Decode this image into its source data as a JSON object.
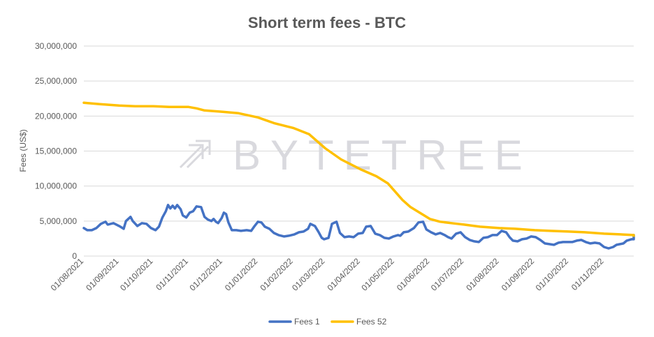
{
  "chart_data": {
    "type": "line",
    "title": "Short term fees - BTC",
    "ylabel": "Fees (US$)",
    "xlabel": "",
    "ylim": [
      0,
      30000000
    ],
    "yticks": [
      0,
      5000000,
      10000000,
      15000000,
      20000000,
      25000000,
      30000000
    ],
    "ytick_labels": [
      "0",
      "5,000,000",
      "10,000,000",
      "15,000,000",
      "20,000,000",
      "25,000,000",
      "30,000,000"
    ],
    "xlim": [
      "2021-08-01",
      "2022-11-25"
    ],
    "xtick_labels": [
      "01/08/2021",
      "01/09/2021",
      "01/10/2021",
      "01/11/2021",
      "01/12/2021",
      "01/01/2022",
      "01/02/2022",
      "01/03/2022",
      "01/04/2022",
      "01/05/2022",
      "01/06/2022",
      "01/07/2022",
      "01/08/2022",
      "01/09/2022",
      "01/10/2022",
      "01/11/2022"
    ],
    "xticks": [
      "2021-08-01",
      "2021-09-01",
      "2021-10-01",
      "2021-11-01",
      "2021-12-01",
      "2022-01-01",
      "2022-02-01",
      "2022-03-01",
      "2022-04-01",
      "2022-05-01",
      "2022-06-01",
      "2022-07-01",
      "2022-08-01",
      "2022-09-01",
      "2022-10-01",
      "2022-11-01"
    ],
    "grid": true,
    "legend_position": "bottom",
    "watermark": "BYTETREE",
    "series": [
      {
        "name": "Fees 1",
        "color": "#4472c4",
        "points": [
          [
            "2021-08-01",
            4000000
          ],
          [
            "2021-08-04",
            3700000
          ],
          [
            "2021-08-08",
            3700000
          ],
          [
            "2021-08-12",
            4000000
          ],
          [
            "2021-08-16",
            4600000
          ],
          [
            "2021-08-20",
            4900000
          ],
          [
            "2021-08-22",
            4500000
          ],
          [
            "2021-08-27",
            4700000
          ],
          [
            "2021-09-01",
            4300000
          ],
          [
            "2021-09-05",
            3900000
          ],
          [
            "2021-09-07",
            5000000
          ],
          [
            "2021-09-11",
            5600000
          ],
          [
            "2021-09-13",
            5000000
          ],
          [
            "2021-09-17",
            4300000
          ],
          [
            "2021-09-21",
            4700000
          ],
          [
            "2021-09-25",
            4600000
          ],
          [
            "2021-09-29",
            4000000
          ],
          [
            "2021-10-03",
            3700000
          ],
          [
            "2021-10-06",
            4200000
          ],
          [
            "2021-10-09",
            5500000
          ],
          [
            "2021-10-12",
            6400000
          ],
          [
            "2021-10-14",
            7300000
          ],
          [
            "2021-10-16",
            6800000
          ],
          [
            "2021-10-18",
            7200000
          ],
          [
            "2021-10-20",
            6800000
          ],
          [
            "2021-10-22",
            7300000
          ],
          [
            "2021-10-25",
            6700000
          ],
          [
            "2021-10-27",
            5800000
          ],
          [
            "2021-10-30",
            5500000
          ],
          [
            "2021-11-02",
            6200000
          ],
          [
            "2021-11-05",
            6400000
          ],
          [
            "2021-11-08",
            7100000
          ],
          [
            "2021-11-12",
            7000000
          ],
          [
            "2021-11-15",
            5600000
          ],
          [
            "2021-11-18",
            5200000
          ],
          [
            "2021-11-21",
            5000000
          ],
          [
            "2021-11-23",
            5300000
          ],
          [
            "2021-11-25",
            4900000
          ],
          [
            "2021-11-27",
            4700000
          ],
          [
            "2021-11-30",
            5400000
          ],
          [
            "2021-12-02",
            6200000
          ],
          [
            "2021-12-04",
            6000000
          ],
          [
            "2021-12-06",
            4800000
          ],
          [
            "2021-12-09",
            3700000
          ],
          [
            "2021-12-13",
            3700000
          ],
          [
            "2021-12-17",
            3600000
          ],
          [
            "2021-12-22",
            3700000
          ],
          [
            "2021-12-26",
            3600000
          ],
          [
            "2021-12-29",
            4300000
          ],
          [
            "2022-01-01",
            4900000
          ],
          [
            "2022-01-04",
            4800000
          ],
          [
            "2022-01-07",
            4200000
          ],
          [
            "2022-01-11",
            3900000
          ],
          [
            "2022-01-15",
            3300000
          ],
          [
            "2022-01-19",
            3000000
          ],
          [
            "2022-01-24",
            2800000
          ],
          [
            "2022-01-28",
            2900000
          ],
          [
            "2022-02-02",
            3100000
          ],
          [
            "2022-02-06",
            3400000
          ],
          [
            "2022-02-10",
            3500000
          ],
          [
            "2022-02-14",
            3900000
          ],
          [
            "2022-02-16",
            4600000
          ],
          [
            "2022-02-20",
            4300000
          ],
          [
            "2022-02-23",
            3500000
          ],
          [
            "2022-02-26",
            2600000
          ],
          [
            "2022-02-28",
            2400000
          ],
          [
            "2022-03-04",
            2600000
          ],
          [
            "2022-03-07",
            4600000
          ],
          [
            "2022-03-11",
            4900000
          ],
          [
            "2022-03-14",
            3300000
          ],
          [
            "2022-03-18",
            2700000
          ],
          [
            "2022-03-22",
            2800000
          ],
          [
            "2022-03-26",
            2700000
          ],
          [
            "2022-03-30",
            3200000
          ],
          [
            "2022-04-03",
            3300000
          ],
          [
            "2022-04-06",
            4200000
          ],
          [
            "2022-04-10",
            4300000
          ],
          [
            "2022-04-14",
            3200000
          ],
          [
            "2022-04-18",
            3000000
          ],
          [
            "2022-04-22",
            2600000
          ],
          [
            "2022-04-26",
            2500000
          ],
          [
            "2022-04-30",
            2800000
          ],
          [
            "2022-05-04",
            3000000
          ],
          [
            "2022-05-06",
            2900000
          ],
          [
            "2022-05-09",
            3400000
          ],
          [
            "2022-05-13",
            3500000
          ],
          [
            "2022-05-18",
            4000000
          ],
          [
            "2022-05-22",
            4800000
          ],
          [
            "2022-05-26",
            4900000
          ],
          [
            "2022-05-29",
            3800000
          ],
          [
            "2022-06-02",
            3400000
          ],
          [
            "2022-06-06",
            3100000
          ],
          [
            "2022-06-10",
            3300000
          ],
          [
            "2022-06-14",
            3000000
          ],
          [
            "2022-06-17",
            2700000
          ],
          [
            "2022-06-20",
            2500000
          ],
          [
            "2022-06-24",
            3200000
          ],
          [
            "2022-06-28",
            3400000
          ],
          [
            "2022-07-02",
            2700000
          ],
          [
            "2022-07-06",
            2300000
          ],
          [
            "2022-07-10",
            2100000
          ],
          [
            "2022-07-14",
            2000000
          ],
          [
            "2022-07-18",
            2600000
          ],
          [
            "2022-07-22",
            2700000
          ],
          [
            "2022-07-26",
            3000000
          ],
          [
            "2022-07-30",
            3000000
          ],
          [
            "2022-08-03",
            3600000
          ],
          [
            "2022-08-07",
            3400000
          ],
          [
            "2022-08-10",
            2700000
          ],
          [
            "2022-08-13",
            2200000
          ],
          [
            "2022-08-17",
            2100000
          ],
          [
            "2022-08-21",
            2400000
          ],
          [
            "2022-08-25",
            2500000
          ],
          [
            "2022-08-29",
            2800000
          ],
          [
            "2022-09-02",
            2700000
          ],
          [
            "2022-09-06",
            2300000
          ],
          [
            "2022-09-10",
            1800000
          ],
          [
            "2022-09-14",
            1700000
          ],
          [
            "2022-09-18",
            1600000
          ],
          [
            "2022-09-22",
            1900000
          ],
          [
            "2022-09-26",
            2000000
          ],
          [
            "2022-09-30",
            2000000
          ],
          [
            "2022-10-04",
            2000000
          ],
          [
            "2022-10-08",
            2200000
          ],
          [
            "2022-10-12",
            2300000
          ],
          [
            "2022-10-16",
            2000000
          ],
          [
            "2022-10-20",
            1800000
          ],
          [
            "2022-10-24",
            1900000
          ],
          [
            "2022-10-28",
            1800000
          ],
          [
            "2022-11-01",
            1300000
          ],
          [
            "2022-11-05",
            1100000
          ],
          [
            "2022-11-09",
            1300000
          ],
          [
            "2022-11-12",
            1600000
          ],
          [
            "2022-11-15",
            1700000
          ],
          [
            "2022-11-18",
            1800000
          ],
          [
            "2022-11-21",
            2200000
          ],
          [
            "2022-11-25",
            2400000
          ],
          [
            "2022-11-29",
            2400000
          ],
          [
            "2022-12-03",
            2600000
          ],
          [
            "2022-12-06",
            2600000
          ],
          [
            "2022-12-10",
            3000000
          ]
        ]
      },
      {
        "name": "Fees 52",
        "color": "#ffc000",
        "points": [
          [
            "2021-08-01",
            21900000
          ],
          [
            "2021-08-15",
            21700000
          ],
          [
            "2021-09-01",
            21500000
          ],
          [
            "2021-09-15",
            21400000
          ],
          [
            "2021-10-01",
            21400000
          ],
          [
            "2021-10-15",
            21300000
          ],
          [
            "2021-11-01",
            21300000
          ],
          [
            "2021-11-08",
            21100000
          ],
          [
            "2021-11-15",
            20800000
          ],
          [
            "2021-12-01",
            20600000
          ],
          [
            "2021-12-15",
            20400000
          ],
          [
            "2022-01-01",
            19800000
          ],
          [
            "2022-01-15",
            19000000
          ],
          [
            "2022-02-01",
            18300000
          ],
          [
            "2022-02-15",
            17400000
          ],
          [
            "2022-03-01",
            15400000
          ],
          [
            "2022-03-15",
            13800000
          ],
          [
            "2022-04-01",
            12400000
          ],
          [
            "2022-04-15",
            11400000
          ],
          [
            "2022-04-25",
            10400000
          ],
          [
            "2022-05-01",
            9300000
          ],
          [
            "2022-05-08",
            8000000
          ],
          [
            "2022-05-15",
            7000000
          ],
          [
            "2022-05-25",
            6000000
          ],
          [
            "2022-06-01",
            5300000
          ],
          [
            "2022-06-10",
            4900000
          ],
          [
            "2022-06-20",
            4700000
          ],
          [
            "2022-07-01",
            4500000
          ],
          [
            "2022-07-15",
            4200000
          ],
          [
            "2022-08-01",
            4000000
          ],
          [
            "2022-08-15",
            3900000
          ],
          [
            "2022-09-01",
            3700000
          ],
          [
            "2022-09-15",
            3600000
          ],
          [
            "2022-10-01",
            3500000
          ],
          [
            "2022-10-15",
            3400000
          ],
          [
            "2022-11-01",
            3200000
          ],
          [
            "2022-11-15",
            3100000
          ],
          [
            "2022-12-01",
            3000000
          ],
          [
            "2022-12-10",
            2900000
          ]
        ]
      }
    ]
  }
}
